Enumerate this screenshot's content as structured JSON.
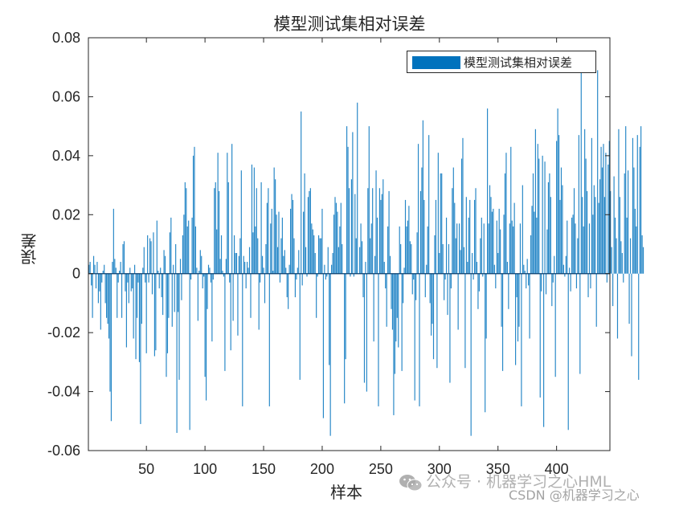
{
  "chart_data": {
    "type": "bar",
    "title": "模型测试集相对误差",
    "xlabel": "样本",
    "ylabel": "误差",
    "xlim": [
      0.5,
      445.5
    ],
    "ylim": [
      -0.06,
      0.08
    ],
    "xticks": [
      50,
      100,
      150,
      200,
      250,
      300,
      350,
      400
    ],
    "yticks": [
      -0.06,
      -0.04,
      -0.02,
      0,
      0.02,
      0.04,
      0.06,
      0.08
    ],
    "ytick_labels": [
      "-0.06",
      "-0.04",
      "-0.02",
      "0",
      "0.02",
      "0.04",
      "0.06",
      "0.08"
    ],
    "legend": {
      "entries": [
        "模型测试集相对误差"
      ],
      "position": "northeast"
    },
    "grid": false,
    "series": [
      {
        "name": "模型测试集相对误差",
        "color": "#0072BD",
        "values": [
          0.003,
          0.004,
          -0.004,
          -0.015,
          0.006,
          0.003,
          -0.005,
          0.004,
          -0.01,
          -0.006,
          -0.019,
          -0.003,
          0.001,
          0.003,
          -0.01,
          -0.015,
          -0.017,
          -0.022,
          -0.04,
          -0.05,
          0.004,
          0.022,
          0.005,
          0.002,
          -0.015,
          -0.003,
          0.001,
          0.004,
          -0.015,
          0.01,
          0.011,
          -0.006,
          -0.025,
          -0.003,
          -0.01,
          0.002,
          -0.006,
          -0.005,
          -0.022,
          0.003,
          -0.029,
          -0.015,
          -0.003,
          -0.03,
          -0.051,
          -0.017,
          0.002,
          0.009,
          -0.003,
          -0.027,
          0.013,
          -0.003,
          0.012,
          0.011,
          -0.007,
          0.014,
          -0.028,
          -0.026,
          0.018,
          0.001,
          -0.005,
          0.002,
          -0.008,
          -0.014,
          0.008,
          0.006,
          -0.035,
          -0.027,
          -0.015,
          0.014,
          0.019,
          -0.018,
          0.003,
          -0.013,
          0.01,
          -0.054,
          -0.013,
          -0.036,
          0.005,
          -0.009,
          0.013,
          0.02,
          0.031,
          0.029,
          0.016,
          0.018,
          -0.053,
          -0.002,
          0.019,
          0.04,
          0.043,
          0.016,
          0.002,
          -0.016,
          0.001,
          0.008,
          0.006,
          -0.005,
          -0.001,
          -0.035,
          -0.043,
          -0.012,
          0.003,
          0.002,
          -0.003,
          -0.023,
          -0.002,
          0.029,
          0.031,
          0.015,
          0.041,
          0.028,
          0.005,
          0.013,
          0.001,
          -0.001,
          -0.033,
          0.005,
          0.041,
          0.031,
          -0.003,
          -0.026,
          0.044,
          -0.016,
          0.013,
          0.007,
          0.007,
          -0.021,
          0.006,
          0.012,
          0.035,
          -0.045,
          0.006,
          0.004,
          -0.005,
          0.004,
          0.002,
          0.009,
          -0.015,
          0.037,
          0.014,
          0.036,
          0.016,
          0.029,
          0.012,
          -0.019,
          -0.003,
          0.031,
          0.006,
          0.002,
          -0.01,
          0.01,
          0.024,
          0.029,
          -0.045,
          0.017,
          0.022,
          0.001,
          0.036,
          0.032,
          0.02,
          0.009,
          0.021,
          -0.003,
          0.012,
          0.019,
          0.006,
          0.008,
          0.002,
          -0.008,
          -0.012,
          0.003,
          0.022,
          0.027,
          0.025,
          0.012,
          -0.008,
          -0.002,
          0.002,
          0.008,
          -0.036,
          0.055,
          -0.004,
          0.021,
          0.034,
          0.009,
          -0.001,
          0.026,
          0.028,
          0.029,
          0.017,
          0.015,
          0.013,
          0.007,
          -0.015,
          -0.001,
          0.013,
          0.012,
          0.012,
          0.022,
          -0.049,
          0.003,
          -0.002,
          -0.001,
          0.009,
          -0.031,
          -0.055,
          0.003,
          0.007,
          0.02,
          0.026,
          0.024,
          0.021,
          0.009,
          0.016,
          0.024,
          0.01,
          0.0,
          -0.044,
          -0.029,
          0.05,
          0.043,
          0.029,
          -0.001,
          0.032,
          0.048,
          -0.001,
          0.027,
          0.012,
          0.058,
          0.0,
          0.009,
          0.017,
          0.011,
          -0.008,
          -0.037,
          0.004,
          -0.04,
          0.029,
          0.05,
          0.012,
          0.017,
          0.029,
          -0.023,
          0.006,
          0.035,
          0.019,
          -0.045,
          0.029,
          0.025,
          0.027,
          0.032,
          0.004,
          -0.005,
          -0.018,
          0.016,
          0.028,
          0.006,
          -0.012,
          -0.019,
          -0.048,
          -0.034,
          -0.023,
          -0.015,
          -0.025,
          0.016,
          0.01,
          -0.033,
          -0.01,
          0.002,
          0.025,
          0.016,
          0.018,
          0.023,
          0.011,
          0.01,
          -0.007,
          -0.002,
          -0.043,
          -0.009,
          0.014,
          0.044,
          -0.045,
          0.028,
          0.036,
          0.052,
          0.025,
          -0.008,
          0.003,
          0.016,
          0.047,
          -0.01,
          -0.021,
          -0.017,
          -0.029,
          0.013,
          0.025,
          -0.032,
          0.041,
          0.007,
          0.034,
          0.034,
          0.01,
          -0.009,
          -0.002,
          0.019,
          -0.014,
          0.01,
          -0.037,
          -0.005,
          0.029,
          0.036,
          0.024,
          0.012,
          0.017,
          -0.019,
          0.017,
          0.008,
          0.039,
          0.046,
          0.009,
          -0.032,
          0.026,
          0.004,
          0.019,
          0.025,
          -0.055,
          0.007,
          -0.002,
          0.025,
          0.029,
          0.004,
          -0.012,
          -0.006,
          0.012,
          0.019,
          -0.001,
          0.017,
          -0.047,
          -0.022,
          0.056,
          0.017,
          0.03,
          0.026,
          0.021,
          0.022,
          0.003,
          -0.005,
          0.018,
          0.007,
          0.022,
          0.015,
          -0.018,
          -0.033,
          0.02,
          0.034,
          0.041,
          0.004,
          -0.012,
          0.017,
          0.043,
          0.018,
          0.016,
          0.024,
          -0.031,
          -0.008,
          -0.023,
          -0.018,
          0.017,
          -0.045,
          0.03,
          0.003,
          0.001,
          -0.005,
          0.005,
          -0.004,
          -0.022,
          0.013,
          0.023,
          0.034,
          0.021,
          0.049,
          0.019,
          0.044,
          0.039,
          -0.042,
          -0.006,
          0.04,
          -0.052,
          0.038,
          -0.007,
          0.015,
          0.031,
          0.034,
          0.026,
          -0.011,
          -0.003,
          0.006,
          -0.035,
          0.045,
          0.056,
          0.047,
          0.025,
          0.036,
          0.03,
          0.003,
          -0.001,
          0.006,
          0.018,
          -0.053,
          0.002,
          -0.006,
          0.019,
          0.02,
          0.029,
          0.017,
          -0.005,
          0.012,
          0.047,
          -0.034,
          0.069,
          0.026,
          0.016,
          0.049,
          0.039,
          0.028,
          -0.008,
          0.017,
          -0.005,
          0.046,
          0.02,
          0.03,
          0.026,
          -0.018,
          0.069,
          0.024,
          0.032,
          0.043,
          0.036,
          0.044,
          0.026,
          0.041,
          -0.003,
          0.037,
          0.045,
          0.028,
          0.009,
          -0.011,
          0.033,
          0.019,
          0.012,
          -0.022,
          0.049,
          0.026,
          0.011,
          0.007,
          -0.003,
          0.034,
          0.05,
          0.019,
          0.035,
          -0.017,
          0.012,
          -0.028,
          0.046,
          0.036,
          0.022,
          0.016,
          0.047,
          -0.036,
          0.043,
          0.05,
          0.013,
          0.009
        ]
      }
    ]
  },
  "legend": {
    "label": "模型测试集相对误差",
    "swatch_color": "#0072BD"
  },
  "watermark": {
    "line1": "公众号 · 机器学习之心HML",
    "line2": "CSDN @机器学习之心"
  },
  "colors": {
    "bar": "#0072BD",
    "axis": "#262626",
    "background": "#ffffff"
  }
}
